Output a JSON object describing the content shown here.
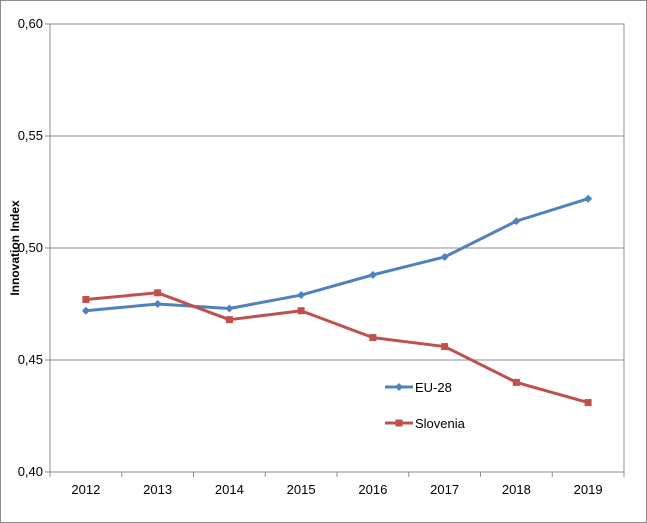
{
  "chart_data": {
    "type": "line",
    "title": "",
    "xlabel": "",
    "ylabel": "Innovation Index",
    "categories": [
      "2012",
      "2013",
      "2014",
      "2015",
      "2016",
      "2017",
      "2018",
      "2019"
    ],
    "y_ticks": [
      "0,40",
      "0,45",
      "0,50",
      "0,55",
      "0,60"
    ],
    "ylim": [
      0.4,
      0.6
    ],
    "grid": "horizontal",
    "legend_position": "bottom-right",
    "series": [
      {
        "name": "EU-28",
        "color": "#4F81BD",
        "marker": "diamond",
        "values": [
          0.472,
          0.475,
          0.473,
          0.479,
          0.488,
          0.496,
          0.512,
          0.522
        ]
      },
      {
        "name": "Slovenia",
        "color": "#C0504D",
        "marker": "square",
        "values": [
          0.477,
          0.48,
          0.468,
          0.472,
          0.46,
          0.456,
          0.44,
          0.431
        ]
      }
    ]
  }
}
